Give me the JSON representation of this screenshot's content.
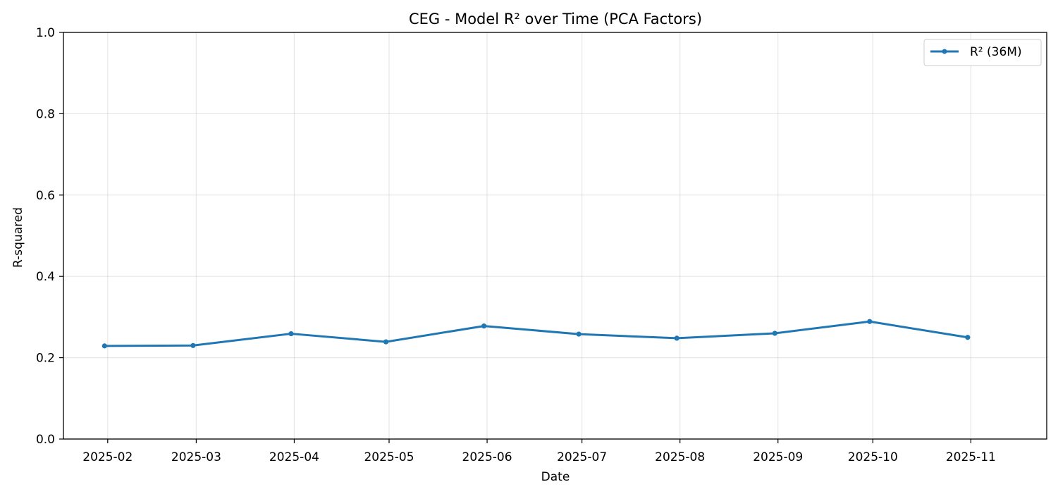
{
  "chart_data": {
    "type": "line",
    "title": "CEG - Model R² over Time (PCA Factors)",
    "xlabel": "Date",
    "ylabel": "R-squared",
    "x_ticks": [
      "2025-02",
      "2025-03",
      "2025-04",
      "2025-05",
      "2025-06",
      "2025-07",
      "2025-08",
      "2025-09",
      "2025-10",
      "2025-11"
    ],
    "y_ticks": [
      "0.0",
      "0.2",
      "0.4",
      "0.6",
      "0.8",
      "1.0"
    ],
    "ylim": [
      0,
      1
    ],
    "xlim": [
      "2025-01-18",
      "2025-11-25"
    ],
    "grid": true,
    "legend_position": "top-right",
    "series": [
      {
        "name": "R² (36M)",
        "color": "#1f77b4",
        "marker": "circle",
        "x": [
          "2025-01-31",
          "2025-02-28",
          "2025-03-31",
          "2025-04-30",
          "2025-05-31",
          "2025-06-30",
          "2025-07-31",
          "2025-08-31",
          "2025-09-30",
          "2025-10-31"
        ],
        "values": [
          0.229,
          0.23,
          0.259,
          0.239,
          0.278,
          0.258,
          0.248,
          0.26,
          0.289,
          0.25
        ]
      }
    ]
  }
}
